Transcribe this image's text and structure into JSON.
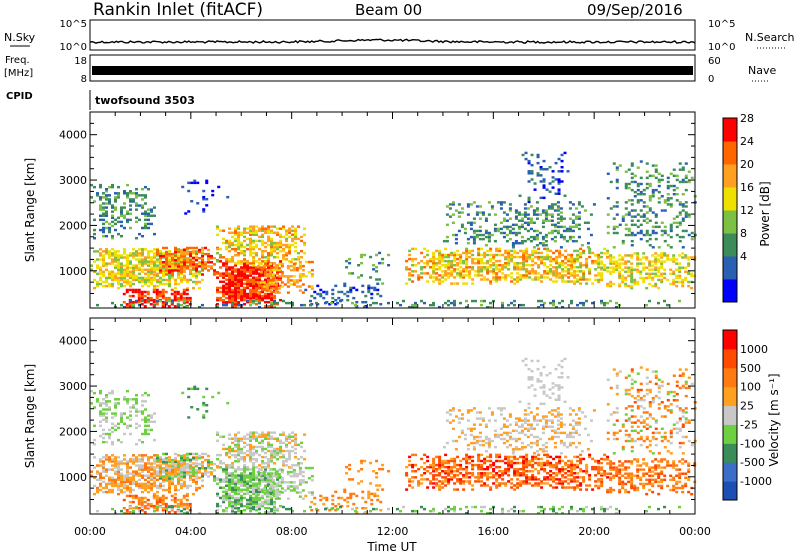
{
  "header": {
    "station": "Rankin Inlet (fitACF)",
    "beam": "Beam 00",
    "date": "09/Sep/2016"
  },
  "small_panels": {
    "nsky_label": "N.Sky",
    "nsky_ticks": [
      "10^5",
      "10^0"
    ],
    "nsearch_label": "N.Search",
    "nsearch_ticks": [
      "10^5",
      "10^0"
    ],
    "freq_label_1": "Freq.",
    "freq_label_2": "[MHz]",
    "freq_ticks": [
      "18",
      "8"
    ],
    "nave_label": "Nave",
    "nave_ticks": [
      "60",
      "0"
    ],
    "cpid_label": "CPID",
    "cpid_value": "twofsound 3503"
  },
  "colors": {
    "power": [
      "#0000ff",
      "#2a5fb2",
      "#3c8c5a",
      "#7cc044",
      "#f0e000",
      "#ffa020",
      "#ff6600",
      "#ff0000"
    ],
    "velocity": [
      "#1c4fb4",
      "#3a6ec8",
      "#3a8c58",
      "#6cd040",
      "#c8c8c8",
      "#ffa020",
      "#ff7a10",
      "#ff4a00",
      "#ff0000"
    ]
  },
  "chart_data": [
    {
      "type": "heatmap",
      "name": "power",
      "ylabel": "Slant Range [km]",
      "yticks": [
        "1000",
        "2000",
        "3000",
        "4000"
      ],
      "ylim": [
        180,
        4500
      ],
      "colorbar_label": "Power [dB]",
      "colorbar_ticks": [
        "28",
        "24",
        "20",
        "16",
        "12",
        "8",
        "4"
      ],
      "clim": [
        0,
        32
      ],
      "xlim": [
        "00:00",
        "24:00"
      ]
    },
    {
      "type": "heatmap",
      "name": "velocity",
      "ylabel": "Slant Range [km]",
      "yticks": [
        "1000",
        "2000",
        "3000",
        "4000"
      ],
      "ylim": [
        180,
        4500
      ],
      "colorbar_label": "Velocity [m s⁻¹]",
      "colorbar_ticks": [
        "1000",
        "500",
        "100",
        "25",
        "-25",
        "-100",
        "-500",
        "-1000"
      ],
      "xlim": [
        "00:00",
        "24:00"
      ],
      "xlabel": "Time UT",
      "xticks": [
        "00:00",
        "04:00",
        "08:00",
        "12:00",
        "16:00",
        "20:00",
        "00:00"
      ]
    }
  ]
}
